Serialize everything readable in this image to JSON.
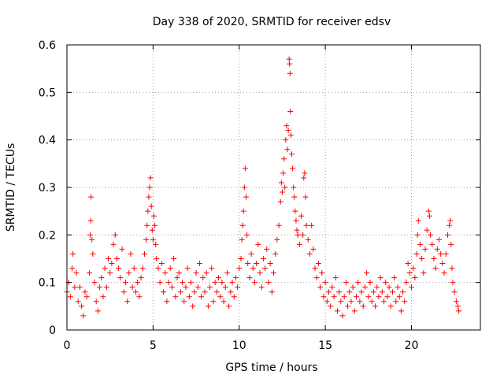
{
  "chart_data": {
    "type": "scatter",
    "title": "Day 338 of 2020, SRMTID for receiver edsv",
    "xlabel": "GPS time / hours",
    "ylabel": "SRMTID / TECUs",
    "xlim": [
      0,
      24
    ],
    "ylim": [
      0,
      0.6
    ],
    "xticks": [
      0,
      5,
      10,
      15,
      20
    ],
    "xtick_labels": [
      "0",
      "5",
      "10",
      "15",
      "20"
    ],
    "yticks": [
      0,
      0.1,
      0.2,
      0.3,
      0.4,
      0.5,
      0.6
    ],
    "ytick_labels": [
      "0",
      "0.1",
      "0.2",
      "0.3",
      "0.4",
      "0.5",
      "0.6"
    ],
    "grid": true,
    "marker": "+",
    "color": "#ff0000",
    "series": [
      {
        "name": "SRMTID",
        "points": [
          [
            0.0,
            0.08
          ],
          [
            0.1,
            0.1
          ],
          [
            0.2,
            0.07
          ],
          [
            0.3,
            0.13
          ],
          [
            0.35,
            0.16
          ],
          [
            0.45,
            0.09
          ],
          [
            0.55,
            0.12
          ],
          [
            0.65,
            0.06
          ],
          [
            0.75,
            0.09
          ],
          [
            0.85,
            0.05
          ],
          [
            0.95,
            0.03
          ],
          [
            1.05,
            0.08
          ],
          [
            1.15,
            0.07
          ],
          [
            1.3,
            0.12
          ],
          [
            1.35,
            0.2
          ],
          [
            1.38,
            0.23
          ],
          [
            1.4,
            0.28
          ],
          [
            1.45,
            0.19
          ],
          [
            1.5,
            0.16
          ],
          [
            1.6,
            0.1
          ],
          [
            1.7,
            0.06
          ],
          [
            1.8,
            0.04
          ],
          [
            1.9,
            0.09
          ],
          [
            2.0,
            0.11
          ],
          [
            2.1,
            0.07
          ],
          [
            2.2,
            0.13
          ],
          [
            2.3,
            0.09
          ],
          [
            2.4,
            0.15
          ],
          [
            2.5,
            0.12
          ],
          [
            2.6,
            0.14
          ],
          [
            2.7,
            0.18
          ],
          [
            2.8,
            0.2
          ],
          [
            2.9,
            0.15
          ],
          [
            3.0,
            0.13
          ],
          [
            3.1,
            0.11
          ],
          [
            3.2,
            0.17
          ],
          [
            3.3,
            0.08
          ],
          [
            3.4,
            0.1
          ],
          [
            3.5,
            0.06
          ],
          [
            3.6,
            0.12
          ],
          [
            3.7,
            0.16
          ],
          [
            3.8,
            0.09
          ],
          [
            3.9,
            0.13
          ],
          [
            4.0,
            0.08
          ],
          [
            4.1,
            0.1
          ],
          [
            4.2,
            0.07
          ],
          [
            4.3,
            0.11
          ],
          [
            4.4,
            0.13
          ],
          [
            4.5,
            0.16
          ],
          [
            4.6,
            0.19
          ],
          [
            4.65,
            0.22
          ],
          [
            4.7,
            0.25
          ],
          [
            4.75,
            0.28
          ],
          [
            4.8,
            0.3
          ],
          [
            4.85,
            0.32
          ],
          [
            4.9,
            0.26
          ],
          [
            4.95,
            0.21
          ],
          [
            5.0,
            0.19
          ],
          [
            5.05,
            0.24
          ],
          [
            5.1,
            0.22
          ],
          [
            5.15,
            0.18
          ],
          [
            5.2,
            0.15
          ],
          [
            5.3,
            0.13
          ],
          [
            5.4,
            0.1
          ],
          [
            5.5,
            0.14
          ],
          [
            5.6,
            0.08
          ],
          [
            5.7,
            0.12
          ],
          [
            5.8,
            0.06
          ],
          [
            5.9,
            0.1
          ],
          [
            6.0,
            0.13
          ],
          [
            6.1,
            0.09
          ],
          [
            6.2,
            0.15
          ],
          [
            6.3,
            0.07
          ],
          [
            6.4,
            0.11
          ],
          [
            6.5,
            0.12
          ],
          [
            6.6,
            0.08
          ],
          [
            6.7,
            0.1
          ],
          [
            6.8,
            0.06
          ],
          [
            6.9,
            0.09
          ],
          [
            7.0,
            0.13
          ],
          [
            7.1,
            0.07
          ],
          [
            7.2,
            0.1
          ],
          [
            7.3,
            0.05
          ],
          [
            7.4,
            0.08
          ],
          [
            7.5,
            0.12
          ],
          [
            7.6,
            0.09
          ],
          [
            7.7,
            0.14
          ],
          [
            7.8,
            0.07
          ],
          [
            7.9,
            0.11
          ],
          [
            8.0,
            0.08
          ],
          [
            8.1,
            0.12
          ],
          [
            8.2,
            0.05
          ],
          [
            8.3,
            0.09
          ],
          [
            8.4,
            0.13
          ],
          [
            8.5,
            0.06
          ],
          [
            8.6,
            0.1
          ],
          [
            8.7,
            0.08
          ],
          [
            8.8,
            0.11
          ],
          [
            8.9,
            0.07
          ],
          [
            9.0,
            0.1
          ],
          [
            9.1,
            0.06
          ],
          [
            9.2,
            0.09
          ],
          [
            9.3,
            0.12
          ],
          [
            9.4,
            0.05
          ],
          [
            9.5,
            0.08
          ],
          [
            9.6,
            0.1
          ],
          [
            9.7,
            0.07
          ],
          [
            9.8,
            0.11
          ],
          [
            9.9,
            0.09
          ],
          [
            10.0,
            0.13
          ],
          [
            10.1,
            0.15
          ],
          [
            10.15,
            0.19
          ],
          [
            10.2,
            0.22
          ],
          [
            10.25,
            0.25
          ],
          [
            10.3,
            0.3
          ],
          [
            10.35,
            0.34
          ],
          [
            10.4,
            0.28
          ],
          [
            10.45,
            0.2
          ],
          [
            10.5,
            0.14
          ],
          [
            10.6,
            0.11
          ],
          [
            10.7,
            0.16
          ],
          [
            10.8,
            0.13
          ],
          [
            10.9,
            0.1
          ],
          [
            11.0,
            0.14
          ],
          [
            11.1,
            0.18
          ],
          [
            11.2,
            0.12
          ],
          [
            11.3,
            0.09
          ],
          [
            11.4,
            0.15
          ],
          [
            11.5,
            0.13
          ],
          [
            11.6,
            0.17
          ],
          [
            11.7,
            0.1
          ],
          [
            11.8,
            0.14
          ],
          [
            11.9,
            0.08
          ],
          [
            12.0,
            0.12
          ],
          [
            12.1,
            0.16
          ],
          [
            12.2,
            0.19
          ],
          [
            12.3,
            0.22
          ],
          [
            12.4,
            0.27
          ],
          [
            12.45,
            0.31
          ],
          [
            12.5,
            0.29
          ],
          [
            12.55,
            0.33
          ],
          [
            12.6,
            0.36
          ],
          [
            12.65,
            0.3
          ],
          [
            12.7,
            0.4
          ],
          [
            12.75,
            0.43
          ],
          [
            12.8,
            0.38
          ],
          [
            12.85,
            0.42
          ],
          [
            12.9,
            0.57
          ],
          [
            12.92,
            0.56
          ],
          [
            12.95,
            0.54
          ],
          [
            12.97,
            0.46
          ],
          [
            13.0,
            0.41
          ],
          [
            13.05,
            0.37
          ],
          [
            13.1,
            0.34
          ],
          [
            13.15,
            0.3
          ],
          [
            13.2,
            0.28
          ],
          [
            13.25,
            0.25
          ],
          [
            13.3,
            0.23
          ],
          [
            13.35,
            0.21
          ],
          [
            13.4,
            0.2
          ],
          [
            13.5,
            0.18
          ],
          [
            13.6,
            0.24
          ],
          [
            13.7,
            0.2
          ],
          [
            13.75,
            0.32
          ],
          [
            13.8,
            0.33
          ],
          [
            13.85,
            0.28
          ],
          [
            13.9,
            0.22
          ],
          [
            14.0,
            0.19
          ],
          [
            14.1,
            0.16
          ],
          [
            14.2,
            0.22
          ],
          [
            14.3,
            0.17
          ],
          [
            14.4,
            0.13
          ],
          [
            14.5,
            0.11
          ],
          [
            14.6,
            0.14
          ],
          [
            14.7,
            0.09
          ],
          [
            14.8,
            0.12
          ],
          [
            14.9,
            0.07
          ],
          [
            15.0,
            0.1
          ],
          [
            15.1,
            0.06
          ],
          [
            15.2,
            0.08
          ],
          [
            15.3,
            0.05
          ],
          [
            15.4,
            0.09
          ],
          [
            15.5,
            0.07
          ],
          [
            15.6,
            0.11
          ],
          [
            15.7,
            0.04
          ],
          [
            15.8,
            0.08
          ],
          [
            15.9,
            0.06
          ],
          [
            16.0,
            0.03
          ],
          [
            16.1,
            0.07
          ],
          [
            16.2,
            0.1
          ],
          [
            16.3,
            0.05
          ],
          [
            16.4,
            0.08
          ],
          [
            16.5,
            0.06
          ],
          [
            16.6,
            0.09
          ],
          [
            16.7,
            0.04
          ],
          [
            16.8,
            0.07
          ],
          [
            16.9,
            0.1
          ],
          [
            17.0,
            0.06
          ],
          [
            17.1,
            0.08
          ],
          [
            17.2,
            0.05
          ],
          [
            17.3,
            0.09
          ],
          [
            17.4,
            0.12
          ],
          [
            17.5,
            0.07
          ],
          [
            17.6,
            0.1
          ],
          [
            17.7,
            0.06
          ],
          [
            17.8,
            0.08
          ],
          [
            17.9,
            0.05
          ],
          [
            18.0,
            0.09
          ],
          [
            18.1,
            0.07
          ],
          [
            18.2,
            0.11
          ],
          [
            18.3,
            0.08
          ],
          [
            18.4,
            0.06
          ],
          [
            18.5,
            0.1
          ],
          [
            18.6,
            0.07
          ],
          [
            18.7,
            0.09
          ],
          [
            18.8,
            0.05
          ],
          [
            18.9,
            0.08
          ],
          [
            19.0,
            0.11
          ],
          [
            19.1,
            0.06
          ],
          [
            19.2,
            0.09
          ],
          [
            19.3,
            0.07
          ],
          [
            19.4,
            0.04
          ],
          [
            19.5,
            0.08
          ],
          [
            19.6,
            0.06
          ],
          [
            19.7,
            0.1
          ],
          [
            19.8,
            0.14
          ],
          [
            19.9,
            0.12
          ],
          [
            20.0,
            0.09
          ],
          [
            20.1,
            0.13
          ],
          [
            20.2,
            0.11
          ],
          [
            20.3,
            0.16
          ],
          [
            20.35,
            0.2
          ],
          [
            20.4,
            0.23
          ],
          [
            20.5,
            0.18
          ],
          [
            20.6,
            0.15
          ],
          [
            20.7,
            0.12
          ],
          [
            20.8,
            0.17
          ],
          [
            20.9,
            0.21
          ],
          [
            21.0,
            0.25
          ],
          [
            21.05,
            0.24
          ],
          [
            21.1,
            0.2
          ],
          [
            21.2,
            0.18
          ],
          [
            21.3,
            0.15
          ],
          [
            21.4,
            0.13
          ],
          [
            21.5,
            0.17
          ],
          [
            21.6,
            0.19
          ],
          [
            21.7,
            0.16
          ],
          [
            21.8,
            0.14
          ],
          [
            21.9,
            0.12
          ],
          [
            22.0,
            0.16
          ],
          [
            22.1,
            0.2
          ],
          [
            22.2,
            0.22
          ],
          [
            22.25,
            0.23
          ],
          [
            22.3,
            0.18
          ],
          [
            22.35,
            0.13
          ],
          [
            22.4,
            0.1
          ],
          [
            22.5,
            0.08
          ],
          [
            22.6,
            0.06
          ],
          [
            22.7,
            0.05
          ],
          [
            22.75,
            0.04
          ]
        ]
      }
    ]
  }
}
